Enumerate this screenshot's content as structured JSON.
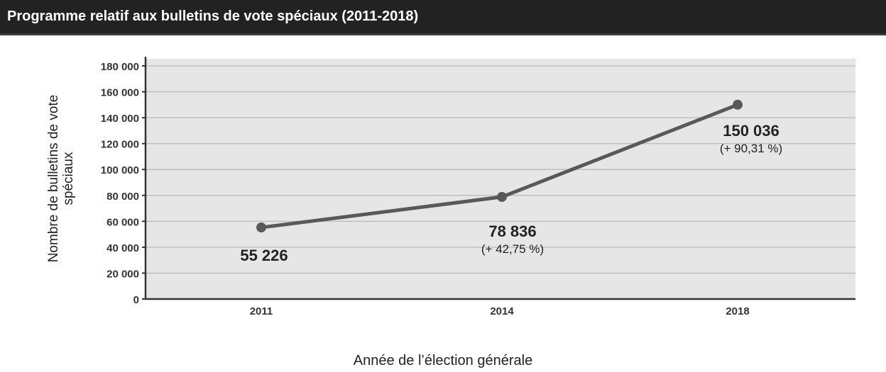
{
  "title": "Programme relatif aux bulletins de vote spéciaux (2011-2018)",
  "colors": {
    "header_bg": "#222222",
    "plot_bg": "#e6e6e6",
    "line": "#595959",
    "grid": "#bfbfbf"
  },
  "chart_data": {
    "type": "line",
    "title": "Programme relatif aux bulletins de vote spéciaux (2011-2018)",
    "xlabel": "Année de l’élection générale",
    "ylabel": "Nombre de bulletins de vote spéciaux",
    "categories": [
      "2011",
      "2014",
      "2018"
    ],
    "values": [
      55226,
      78836,
      150036
    ],
    "ylim": [
      0,
      180000
    ],
    "yticks": [
      0,
      20000,
      40000,
      60000,
      80000,
      100000,
      120000,
      140000,
      160000,
      180000
    ],
    "ytick_labels": [
      "0",
      "20 000",
      "40 000",
      "60 000",
      "80 000",
      "100 000",
      "120 000",
      "140 000",
      "160 000",
      "180 000"
    ],
    "grid": true,
    "annotations": [
      {
        "value_label": "55 226",
        "change_label": ""
      },
      {
        "value_label": "78 836",
        "change_label": "(+ 42,75 %)"
      },
      {
        "value_label": "150 036",
        "change_label": "(+ 90,31 %)"
      }
    ]
  }
}
